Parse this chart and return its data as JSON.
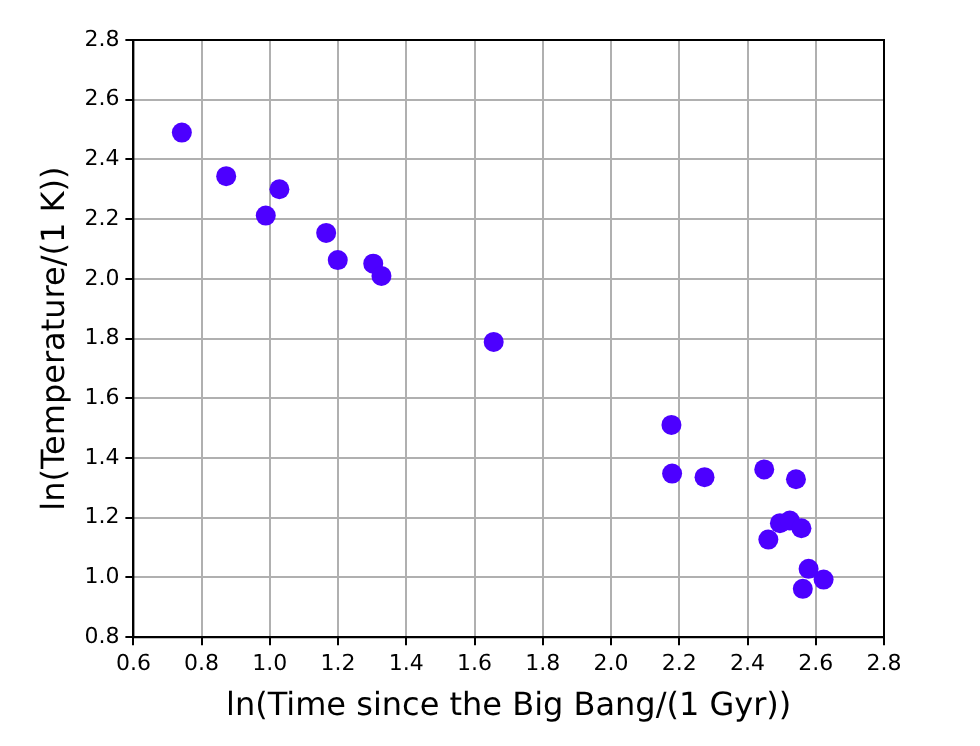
{
  "chart_data": {
    "type": "scatter",
    "xlabel": "ln(Time since the Big Bang/(1 Gyr))",
    "ylabel": "ln(Temperature/(1 K))",
    "x": [
      0.742,
      0.872,
      1.028,
      0.988,
      1.165,
      1.199,
      1.303,
      1.327,
      1.656,
      2.177,
      2.179,
      2.274,
      2.449,
      2.542,
      2.461,
      2.495,
      2.524,
      2.558,
      2.579,
      2.562,
      2.623
    ],
    "series": [
      {
        "color": "#4c00ff",
        "values": [
          2.49,
          2.344,
          2.3,
          2.212,
          2.154,
          2.063,
          2.051,
          2.01,
          1.789,
          1.511,
          1.348,
          1.336,
          1.362,
          1.329,
          1.127,
          1.182,
          1.191,
          1.165,
          1.029,
          0.962,
          0.993
        ]
      }
    ],
    "xlim": [
      0.6,
      2.8
    ],
    "xticks": [
      {
        "value": 0.6,
        "label": "0.6"
      },
      {
        "value": 0.8,
        "label": "0.8"
      },
      {
        "value": 1.0,
        "label": "1.0"
      },
      {
        "value": 1.2,
        "label": "1.2"
      },
      {
        "value": 1.4,
        "label": "1.4"
      },
      {
        "value": 1.6,
        "label": "1.6"
      },
      {
        "value": 1.8,
        "label": "1.8"
      },
      {
        "value": 2.0,
        "label": "2.0"
      },
      {
        "value": 2.2,
        "label": "2.2"
      },
      {
        "value": 2.4,
        "label": "2.4"
      },
      {
        "value": 2.6,
        "label": "2.6"
      },
      {
        "value": 2.8,
        "label": "2.8"
      }
    ],
    "ylim": [
      0.8,
      2.8
    ],
    "yticks": [
      {
        "value": 0.8,
        "label": "0.8"
      },
      {
        "value": 1.0,
        "label": "1.0"
      },
      {
        "value": 1.2,
        "label": "1.2"
      },
      {
        "value": 1.4,
        "label": "1.4"
      },
      {
        "value": 1.6,
        "label": "1.6"
      },
      {
        "value": 1.8,
        "label": "1.8"
      },
      {
        "value": 2.0,
        "label": "2.0"
      },
      {
        "value": 2.2,
        "label": "2.2"
      },
      {
        "value": 2.4,
        "label": "2.4"
      },
      {
        "value": 2.6,
        "label": "2.6"
      },
      {
        "value": 2.8,
        "label": "2.8"
      }
    ],
    "grid": true,
    "marker": "circle"
  }
}
